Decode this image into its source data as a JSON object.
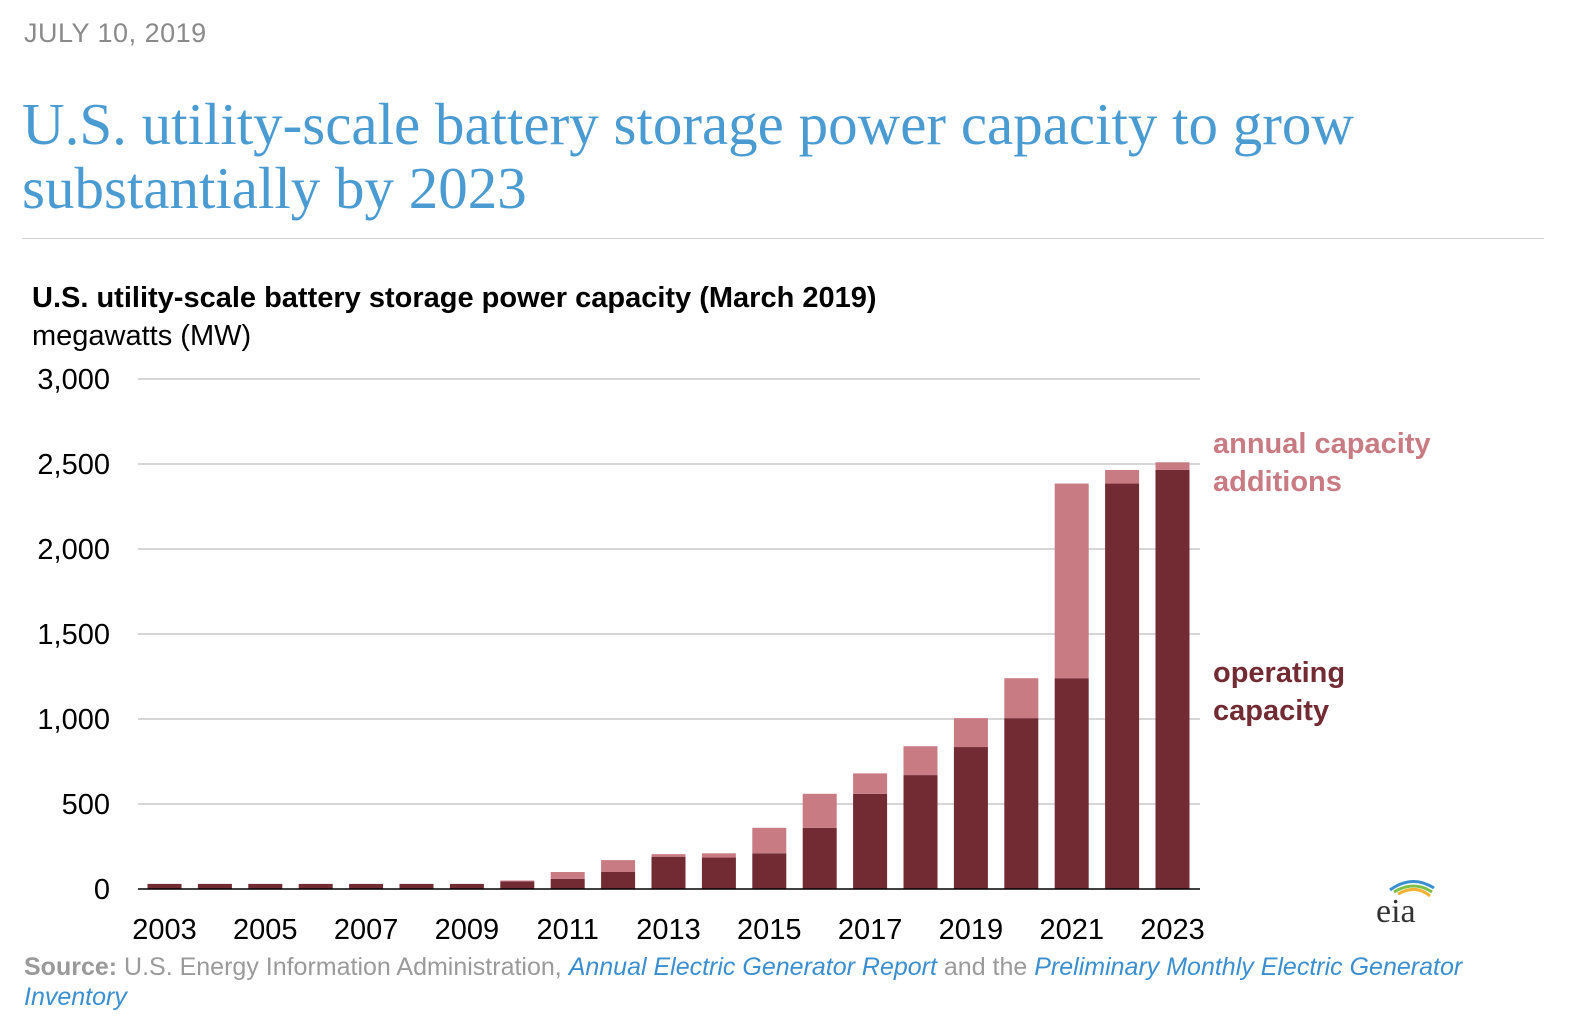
{
  "header": {
    "date": "JULY 10, 2019",
    "headline": "U.S. utility-scale battery storage power capacity to grow substantially by 2023"
  },
  "chart_data": {
    "type": "bar",
    "stacked": true,
    "title": "U.S. utility-scale battery storage power capacity (March 2019)",
    "ylabel": "megawatts (MW)",
    "ylim": [
      0,
      3000
    ],
    "yticks": [
      0,
      500,
      1000,
      1500,
      2000,
      2500,
      3000
    ],
    "ytick_labels": [
      "0",
      "500",
      "1,000",
      "1,500",
      "2,000",
      "2,500",
      "3,000"
    ],
    "categories": [
      "2003",
      "2004",
      "2005",
      "2006",
      "2007",
      "2008",
      "2009",
      "2010",
      "2011",
      "2012",
      "2013",
      "2014",
      "2015",
      "2016",
      "2017",
      "2018",
      "2019",
      "2020",
      "2021",
      "2022",
      "2023"
    ],
    "xtick_labels": [
      "2003",
      "2005",
      "2007",
      "2009",
      "2011",
      "2013",
      "2015",
      "2017",
      "2019",
      "2021",
      "2023"
    ],
    "series": [
      {
        "name": "operating capacity",
        "color": "#722a33",
        "values": [
          30,
          30,
          30,
          30,
          30,
          30,
          30,
          45,
          60,
          100,
          190,
          185,
          210,
          360,
          560,
          670,
          835,
          1005,
          1240,
          2385,
          2465
        ]
      },
      {
        "name": "annual capacity additions",
        "color": "#c97b84",
        "values": [
          0,
          0,
          0,
          0,
          0,
          0,
          0,
          5,
          40,
          70,
          15,
          25,
          150,
          200,
          120,
          170,
          170,
          235,
          1145,
          80,
          45
        ]
      }
    ],
    "legend": [
      {
        "label": "annual capacity additions",
        "color": "#c97b84"
      },
      {
        "label": "operating capacity",
        "color": "#722a33"
      }
    ],
    "gridlines": true
  },
  "source": {
    "prefix": "Source:",
    "text1": " U.S. Energy Information Administration, ",
    "link1": "Annual Electric Generator Report",
    "text2": " and the ",
    "link2": "Preliminary Monthly Electric Generator Inventory"
  },
  "logo": {
    "text": "eia"
  }
}
